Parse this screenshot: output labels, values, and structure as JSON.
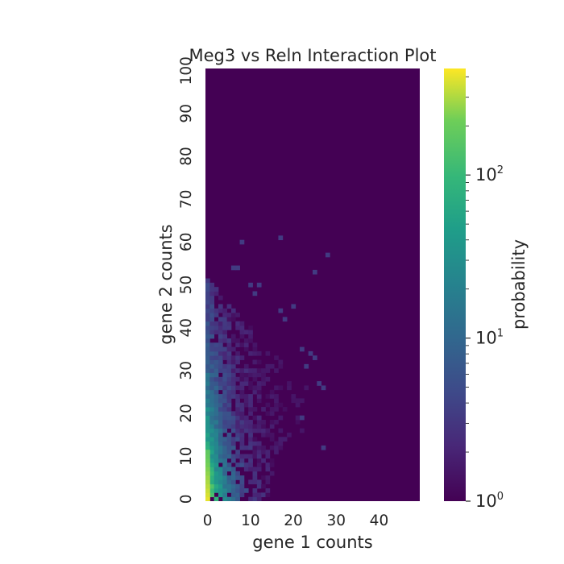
{
  "chart_data": {
    "type": "heatmap",
    "title": "Meg3 vs Reln Interaction Plot",
    "xlabel": "gene 1 counts",
    "ylabel": "gene 2 counts",
    "x_range": [
      0,
      50
    ],
    "y_range": [
      0,
      101
    ],
    "x_ticks": [
      "0",
      "10",
      "20",
      "30",
      "40"
    ],
    "y_ticks": [
      "0",
      "10",
      "20",
      "30",
      "40",
      "50",
      "60",
      "70",
      "80",
      "90",
      "100"
    ],
    "colormap": "viridis",
    "background_color": "#440154",
    "grid": false,
    "colorbar": {
      "label": "probability",
      "scale": "log",
      "range": [
        1,
        450
      ],
      "tick_base": "10",
      "tick_exponents": [
        "0",
        "1",
        "2"
      ]
    },
    "spread_envelope": [
      {
        "y": 0,
        "x_max": 14
      },
      {
        "y": 5,
        "x_max": 17
      },
      {
        "y": 10,
        "x_max": 22
      },
      {
        "y": 15,
        "x_max": 22
      },
      {
        "y": 20,
        "x_max": 24
      },
      {
        "y": 25,
        "x_max": 24
      },
      {
        "y": 30,
        "x_max": 20
      },
      {
        "y": 35,
        "x_max": 16
      },
      {
        "y": 40,
        "x_max": 10
      },
      {
        "y": 45,
        "x_max": 6
      },
      {
        "y": 50,
        "x_max": 1
      }
    ],
    "outlier_points": [
      {
        "x": 8,
        "y": 60
      },
      {
        "x": 17,
        "y": 61
      },
      {
        "x": 28,
        "y": 57
      },
      {
        "x": 7,
        "y": 54
      },
      {
        "x": 6,
        "y": 54
      },
      {
        "x": 25,
        "y": 53
      },
      {
        "x": 10,
        "y": 50
      },
      {
        "x": 12,
        "y": 50
      },
      {
        "x": 11,
        "y": 48
      },
      {
        "x": 20,
        "y": 45
      },
      {
        "x": 17,
        "y": 44
      },
      {
        "x": 18,
        "y": 42
      },
      {
        "x": 22,
        "y": 35
      },
      {
        "x": 24,
        "y": 34
      },
      {
        "x": 25,
        "y": 33
      },
      {
        "x": 23,
        "y": 31
      },
      {
        "x": 26,
        "y": 27
      },
      {
        "x": 27,
        "y": 26
      },
      {
        "x": 22,
        "y": 19
      },
      {
        "x": 27,
        "y": 12
      }
    ]
  }
}
